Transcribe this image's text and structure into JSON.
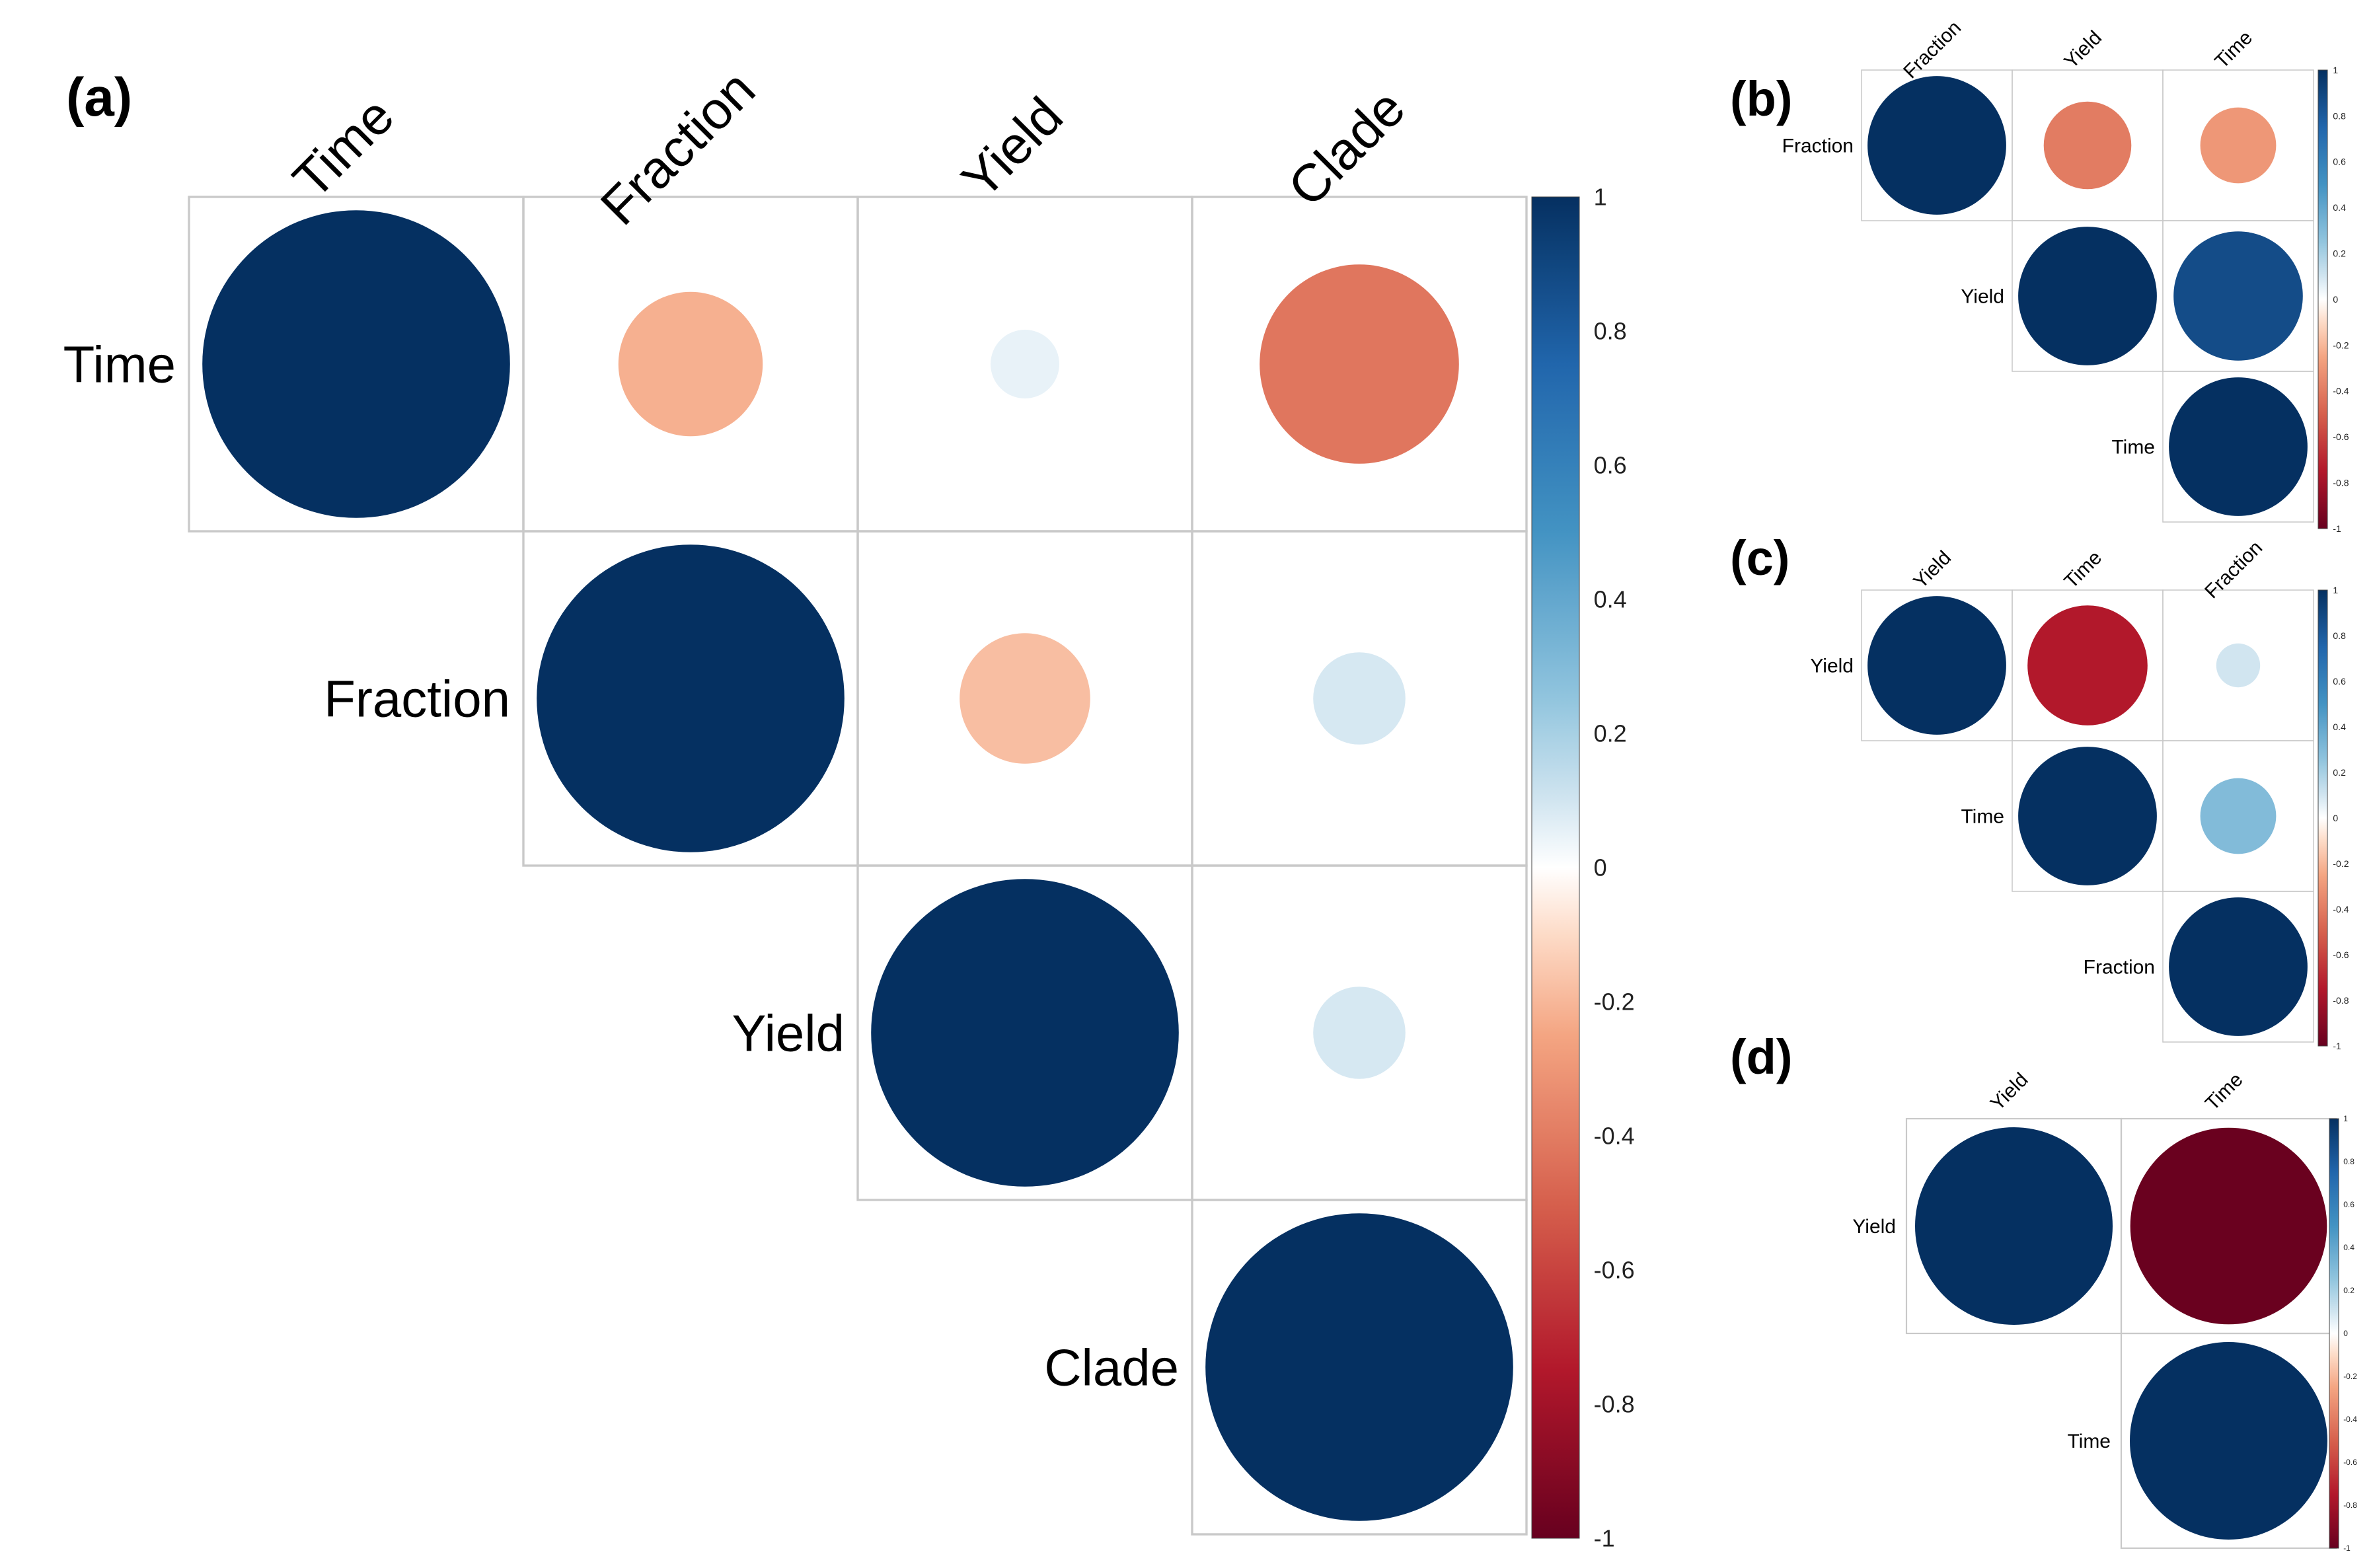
{
  "colors": {
    "grid": "#c9c9c9"
  },
  "colorbar_ticks": [
    "1",
    "0.8",
    "0.6",
    "0.4",
    "0.2",
    "0",
    "-0.2",
    "-0.4",
    "-0.6",
    "-0.8",
    "-1"
  ],
  "colorbar_ticks_small": [
    "1",
    "0.8",
    "0.6",
    "0.4",
    "0.2",
    "0",
    "-0.2",
    "-0.4",
    "-0.6",
    "-0.8",
    "-1"
  ],
  "chart_data": [
    {
      "panel": "(a)",
      "type": "heatmap",
      "style": "upper-triangle circle correlation plot",
      "variables": [
        "Time",
        "Fraction",
        "Yield",
        "Clade"
      ],
      "matrix": [
        [
          1,
          -0.22,
          0.05,
          -0.42
        ],
        [
          null,
          1,
          -0.18,
          0.09
        ],
        [
          null,
          null,
          1,
          0.09
        ],
        [
          null,
          null,
          null,
          1
        ]
      ],
      "colorbar": {
        "min": -1,
        "max": 1
      }
    },
    {
      "panel": "(b)",
      "type": "heatmap",
      "style": "upper-triangle circle correlation plot",
      "variables": [
        "Fraction",
        "Yield",
        "Time"
      ],
      "matrix": [
        [
          1,
          -0.4,
          -0.3
        ],
        [
          null,
          1,
          0.87
        ],
        [
          null,
          null,
          1
        ]
      ],
      "colorbar": {
        "min": -1,
        "max": 1
      }
    },
    {
      "panel": "(c)",
      "type": "heatmap",
      "style": "upper-triangle circle correlation plot",
      "variables": [
        "Yield",
        "Time",
        "Fraction"
      ],
      "matrix": [
        [
          1,
          -0.75,
          0.1
        ],
        [
          null,
          1,
          0.3
        ],
        [
          null,
          null,
          1
        ]
      ],
      "colorbar": {
        "min": -1,
        "max": 1
      }
    },
    {
      "panel": "(d)",
      "type": "heatmap",
      "style": "upper-triangle circle correlation plot",
      "variables": [
        "Yield",
        "Time"
      ],
      "matrix": [
        [
          1,
          -0.99
        ],
        [
          null,
          1
        ]
      ],
      "colorbar": {
        "min": -1,
        "max": 1
      }
    }
  ]
}
